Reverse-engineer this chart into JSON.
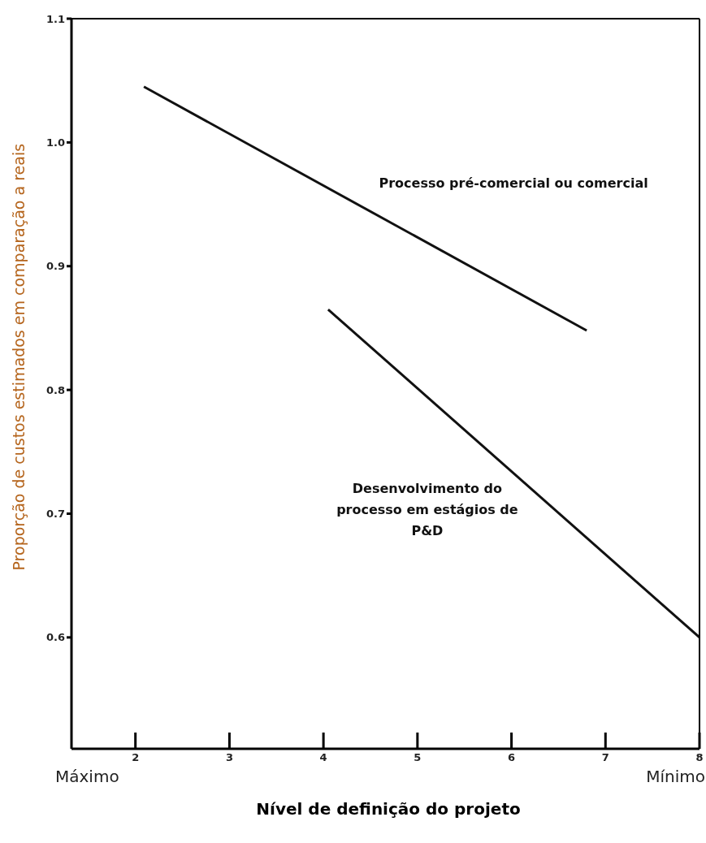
{
  "chart_data": {
    "type": "line",
    "xlabel": "Nível de definição do projeto",
    "ylabel": "Proporção de custos estimados em comparação a reais",
    "xlim": [
      1.32,
      8
    ],
    "xticks": [
      2,
      3,
      4,
      5,
      6,
      7,
      8
    ],
    "ylim": [
      0.51,
      1.1
    ],
    "yticks": [
      {
        "value": 0.6,
        "label": "0.6"
      },
      {
        "value": 0.7,
        "label": "0.7"
      },
      {
        "value": 0.8,
        "label": "0.8"
      },
      {
        "value": 0.9,
        "label": "0.9"
      },
      {
        "value": 1,
        "label": "1.0"
      },
      {
        "value": 1.1,
        "label": "1.1"
      }
    ],
    "series": [
      {
        "name": "Processo pré-comercial ou comercial",
        "color": "#111111",
        "x": [
          2.09,
          6.8
        ],
        "values": [
          1.045,
          0.848
        ]
      },
      {
        "name": "Desenvolvimento do processo em estágios de P&D",
        "color": "#111111",
        "x": [
          4.05,
          8
        ],
        "values": [
          0.865,
          0.6
        ]
      }
    ],
    "annotations": [
      "Máximo",
      "Mínimo"
    ],
    "grid": false,
    "legend": false,
    "marker": "none",
    "line_style": "solid"
  }
}
